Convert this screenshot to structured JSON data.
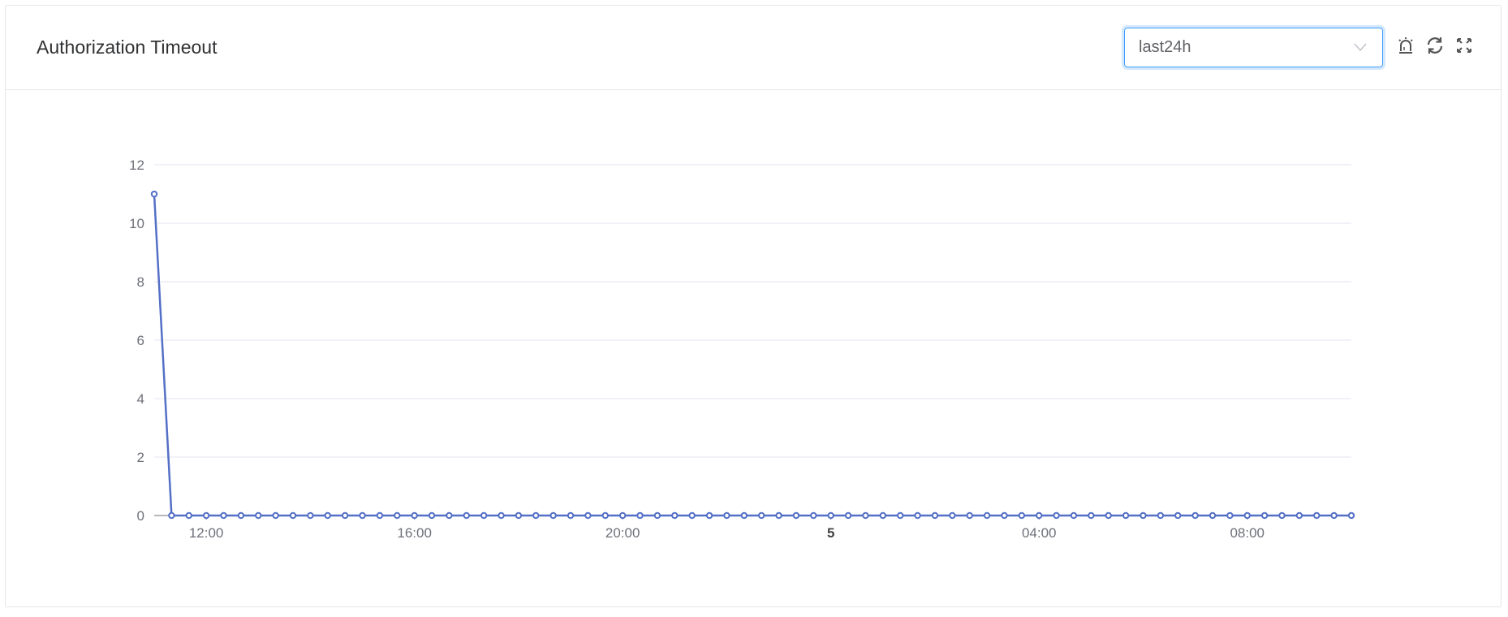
{
  "header": {
    "title": "Authorization Timeout",
    "range_select": {
      "value": "last24h"
    },
    "icons": [
      "alarm-icon",
      "refresh-icon",
      "fullscreen-icon"
    ]
  },
  "colors": {
    "series": "#5470c6",
    "accent": "#409eff",
    "grid": "#e0e6f1"
  },
  "chart_data": {
    "type": "line",
    "title": "",
    "xlabel": "",
    "ylabel": "",
    "ylim": [
      0,
      12
    ],
    "yticks": [
      "0",
      "2",
      "4",
      "6",
      "8",
      "10",
      "12"
    ],
    "xticks": [
      {
        "label": "12:00",
        "time": "12:00",
        "bold": false
      },
      {
        "label": "16:00",
        "time": "16:00",
        "bold": false
      },
      {
        "label": "20:00",
        "time": "20:00",
        "bold": false
      },
      {
        "label": "5",
        "time": "24:00",
        "bold": true
      },
      {
        "label": "04:00",
        "time": "28:00",
        "bold": false
      },
      {
        "label": "08:00",
        "time": "32:00",
        "bold": false
      }
    ],
    "x_start": "11:00",
    "x_end": "10:00 (next day)",
    "interval_minutes": 20,
    "grid": true,
    "legend": "none",
    "series": [
      {
        "values": [
          11,
          0,
          0,
          0,
          0,
          0,
          0,
          0,
          0,
          0,
          0,
          0,
          0,
          0,
          0,
          0,
          0,
          0,
          0,
          0,
          0,
          0,
          0,
          0,
          0,
          0,
          0,
          0,
          0,
          0,
          0,
          0,
          0,
          0,
          0,
          0,
          0,
          0,
          0,
          0,
          0,
          0,
          0,
          0,
          0,
          0,
          0,
          0,
          0,
          0,
          0,
          0,
          0,
          0,
          0,
          0,
          0,
          0,
          0,
          0,
          0,
          0,
          0,
          0,
          0,
          0,
          0,
          0,
          0,
          0
        ]
      }
    ]
  }
}
